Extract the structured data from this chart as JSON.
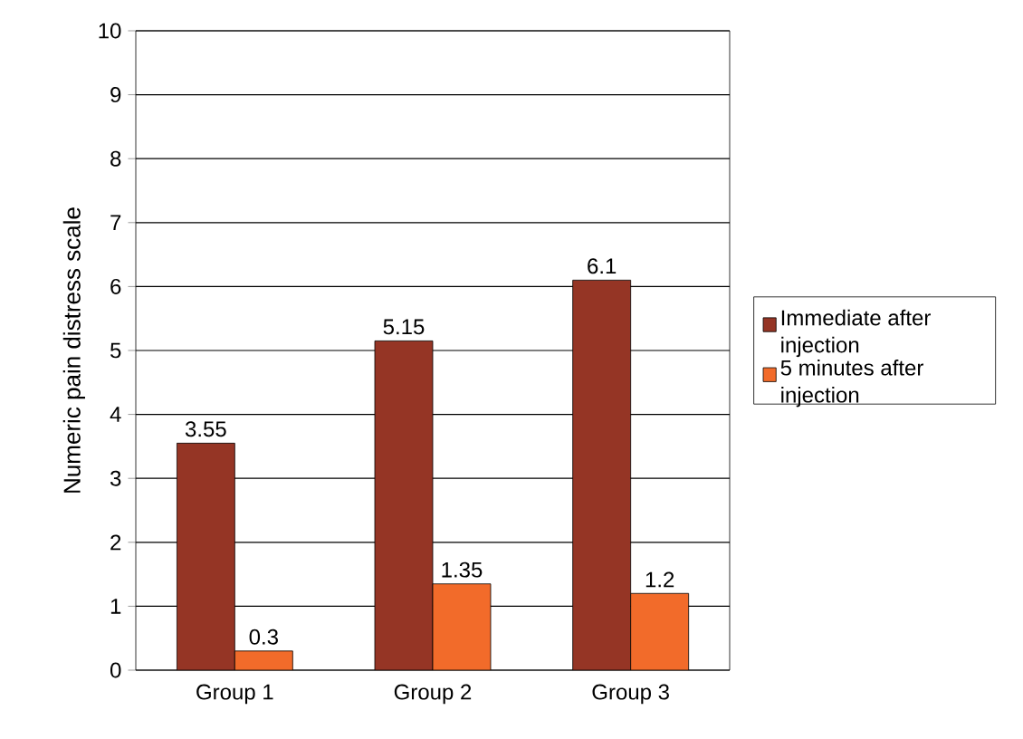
{
  "chart_data": {
    "type": "bar",
    "ylabel": "Numeric pain distress scale",
    "categories": [
      "Group 1",
      "Group 2",
      "Group 3"
    ],
    "series": [
      {
        "name": "Immediate after injection",
        "color": "#953525",
        "values": [
          3.55,
          5.15,
          6.1
        ]
      },
      {
        "name": "5 minutes after injection",
        "color": "#f26b2a",
        "values": [
          0.3,
          1.35,
          1.2
        ]
      }
    ],
    "ylim": [
      0,
      10
    ],
    "yticks": [
      0,
      1,
      2,
      3,
      4,
      5,
      6,
      7,
      8,
      9,
      10
    ],
    "grid": "y",
    "legend": "right",
    "data_labels": true
  }
}
